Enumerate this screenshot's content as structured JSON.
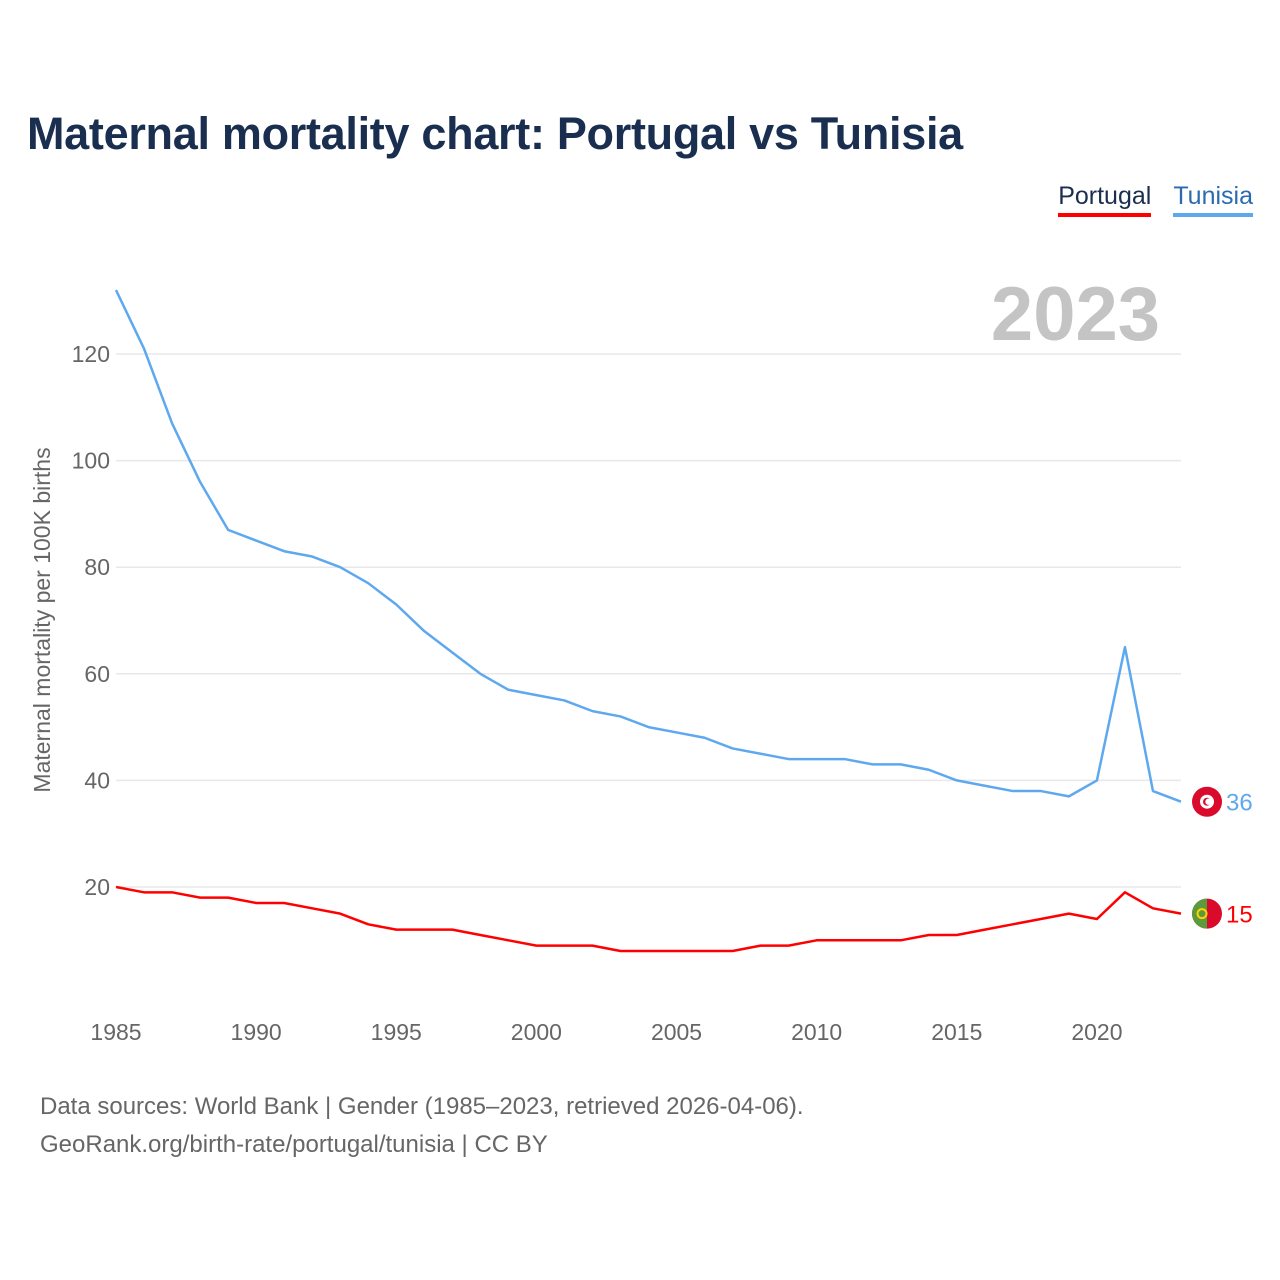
{
  "title": "Maternal mortality chart: Portugal vs Tunisia",
  "legend": [
    {
      "name": "Portugal",
      "color": "#ff0000"
    },
    {
      "name": "Tunisia",
      "color": "#5ea8f0"
    }
  ],
  "chart_data": {
    "type": "line",
    "year_label": "2023",
    "ylabel": "Maternal mortality per 100K births",
    "xlim": [
      1985,
      2023
    ],
    "ylim": [
      0,
      130
    ],
    "x_ticks": [
      1985,
      1990,
      1995,
      2000,
      2005,
      2010,
      2015,
      2020
    ],
    "y_ticks": [
      20,
      40,
      60,
      80,
      100,
      120
    ],
    "grid": true,
    "x": [
      1985,
      1986,
      1987,
      1988,
      1989,
      1990,
      1991,
      1992,
      1993,
      1994,
      1995,
      1996,
      1997,
      1998,
      1999,
      2000,
      2001,
      2002,
      2003,
      2004,
      2005,
      2006,
      2007,
      2008,
      2009,
      2010,
      2011,
      2012,
      2013,
      2014,
      2015,
      2016,
      2017,
      2018,
      2019,
      2020,
      2021,
      2022,
      2023
    ],
    "series": [
      {
        "name": "Portugal",
        "color": "#ff0000",
        "end_label": "15",
        "values": [
          20,
          19,
          19,
          18,
          18,
          17,
          17,
          16,
          15,
          13,
          12,
          12,
          12,
          11,
          10,
          9,
          9,
          9,
          8,
          8,
          8,
          8,
          8,
          9,
          9,
          10,
          10,
          10,
          10,
          11,
          11,
          12,
          13,
          14,
          15,
          14,
          19,
          16,
          15
        ]
      },
      {
        "name": "Tunisia",
        "color": "#5ea8f0",
        "end_label": "36",
        "values": [
          132,
          121,
          107,
          96,
          87,
          85,
          83,
          82,
          80,
          77,
          73,
          68,
          64,
          60,
          57,
          56,
          55,
          53,
          52,
          50,
          49,
          48,
          46,
          45,
          44,
          44,
          44,
          43,
          43,
          42,
          40,
          39,
          38,
          38,
          37,
          40,
          65,
          38,
          36
        ]
      }
    ]
  },
  "footer": {
    "line1": "Data sources: World Bank | Gender (1985–2023, retrieved 2026-04-06).",
    "line2": "GeoRank.org/birth-rate/portugal/tunisia | CC BY"
  }
}
